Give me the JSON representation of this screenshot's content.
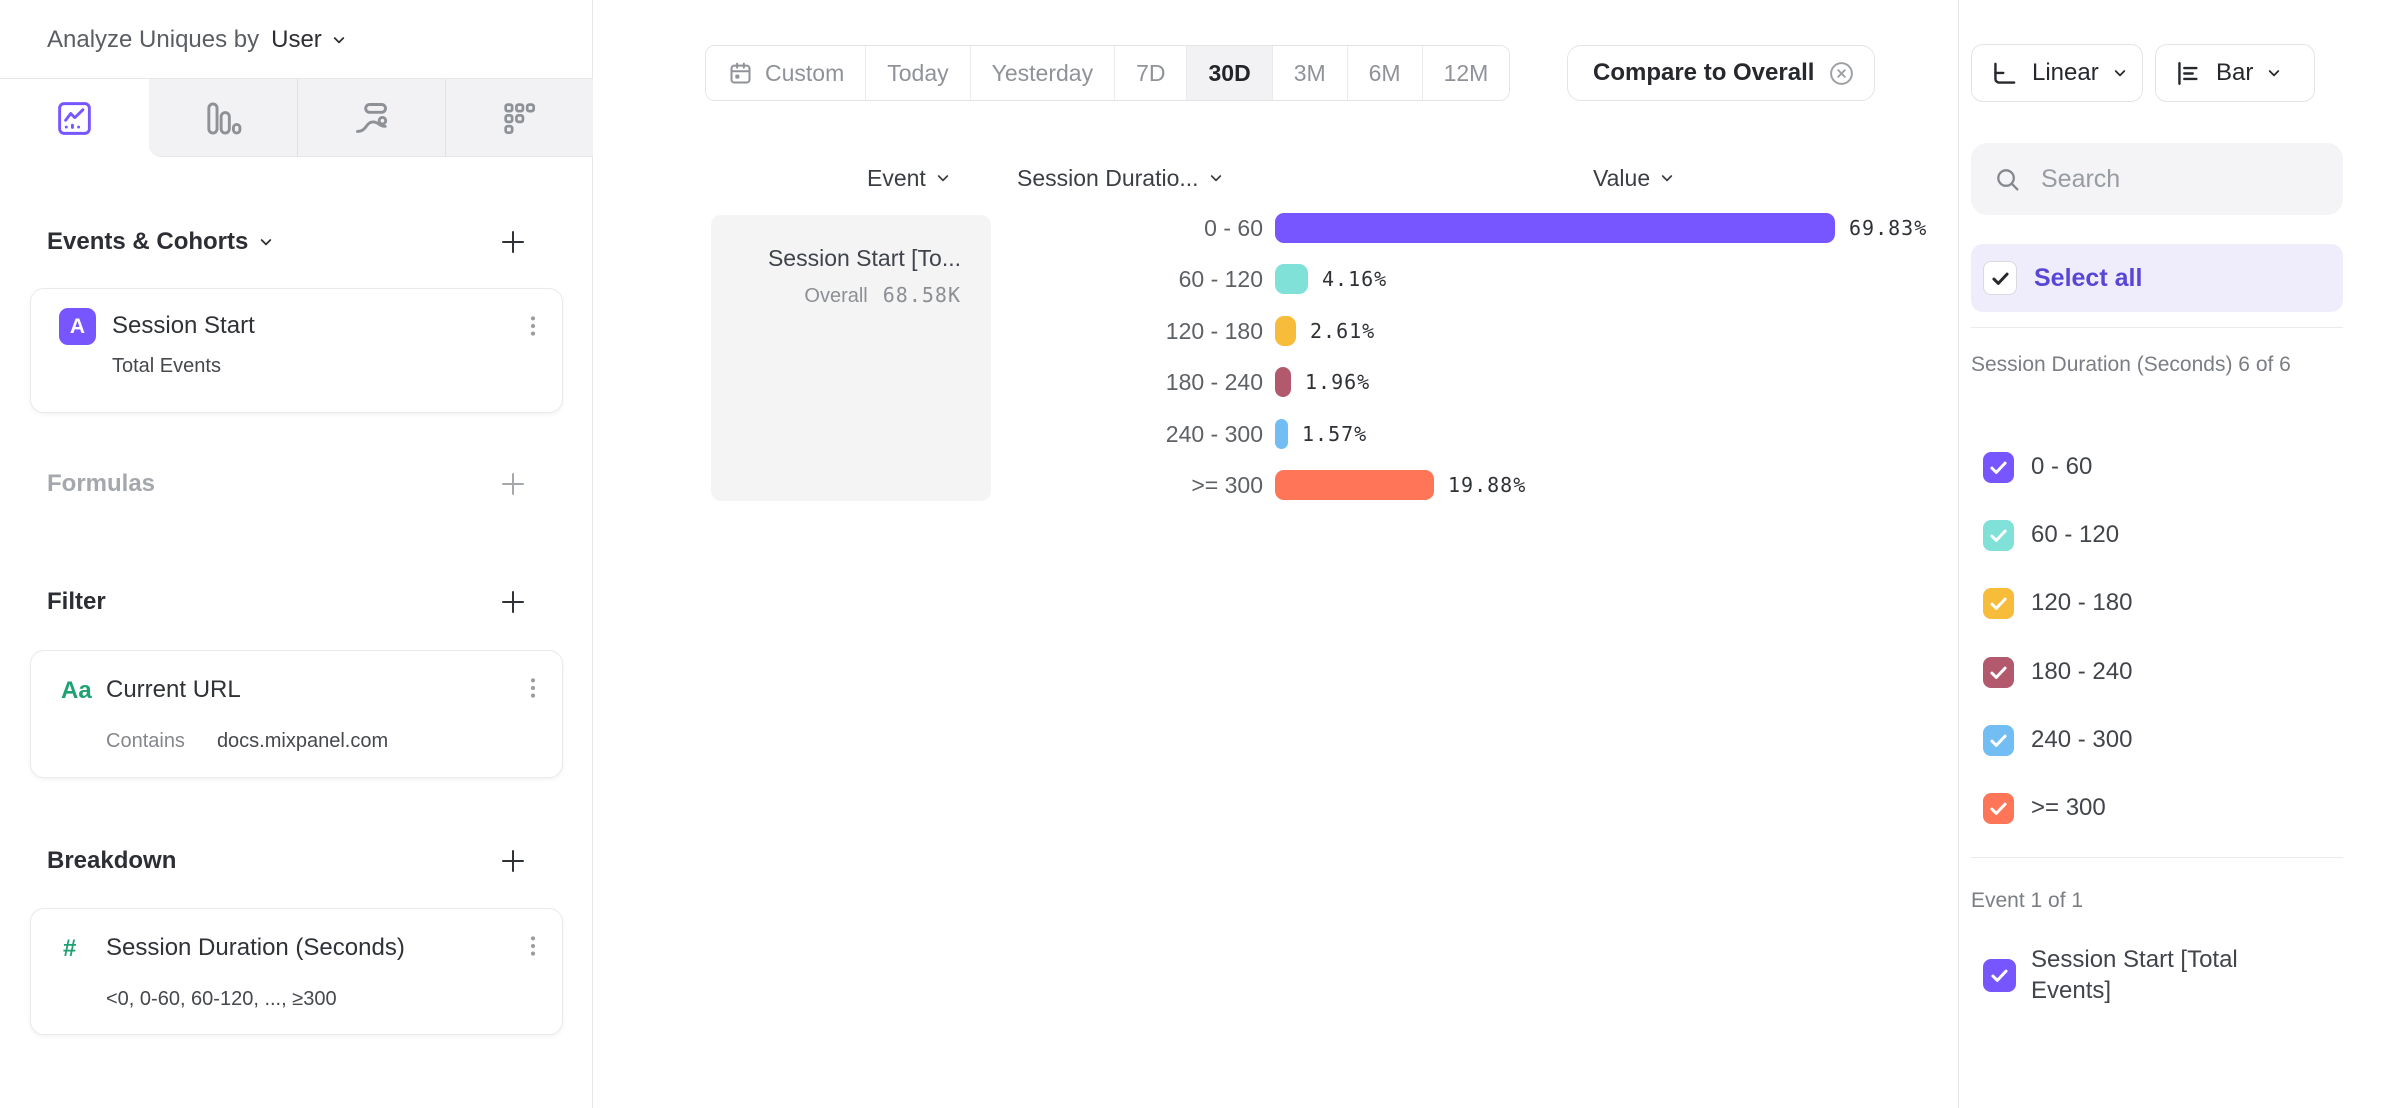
{
  "left_panel": {
    "analyze": {
      "label": "Analyze Uniques by",
      "value": "User"
    },
    "tabs": [
      {
        "name": "insights",
        "selected": true
      },
      {
        "name": "bar-report",
        "selected": false
      },
      {
        "name": "flows-report",
        "selected": false
      },
      {
        "name": "retention-report",
        "selected": false
      }
    ],
    "events_cohorts": {
      "title": "Events & Cohorts"
    },
    "event_card": {
      "badge": "A",
      "title": "Session Start",
      "subtitle": "Total Events"
    },
    "formulas": {
      "title": "Formulas"
    },
    "filter": {
      "title": "Filter"
    },
    "filter_card": {
      "icon": "Aa",
      "title": "Current URL",
      "operator": "Contains",
      "value": "docs.mixpanel.com"
    },
    "breakdown": {
      "title": "Breakdown"
    },
    "breakdown_card": {
      "icon": "#",
      "title": "Session Duration (Seconds)",
      "subtitle": "<0, 0-60, 60-120, ..., ≥300"
    }
  },
  "toolbar": {
    "ranges": [
      "Custom",
      "Today",
      "Yesterday",
      "7D",
      "30D",
      "3M",
      "6M",
      "12M"
    ],
    "selected_range": "30D",
    "compare_label": "Compare to Overall"
  },
  "view_controls": {
    "scale_label": "Linear",
    "chart_label": "Bar"
  },
  "result_table": {
    "columns": [
      "Event",
      "Session Duratio...",
      "Value"
    ],
    "event_cell": {
      "title": "Session Start [To...",
      "overall_label": "Overall",
      "overall_value": "68.58K"
    }
  },
  "chart_data": {
    "type": "bar",
    "orientation": "horizontal",
    "title": "",
    "categories": [
      "0 - 60",
      "60 - 120",
      "120 - 180",
      "180 - 240",
      "240 - 300",
      ">= 300"
    ],
    "values": [
      69.83,
      4.16,
      2.61,
      1.96,
      1.57,
      19.88
    ],
    "labels": [
      "69.83%",
      "4.16%",
      "2.61%",
      "1.96%",
      "1.57%",
      "19.88%"
    ],
    "colors": [
      "#7856FF",
      "#80E1D9",
      "#F8BC3B",
      "#B2596E",
      "#72BEF4",
      "#FF7557"
    ],
    "series_name": "Session Start [Total Events]",
    "overall_value": "68.58K",
    "unit": "%",
    "xlim": [
      0,
      100
    ]
  },
  "right_panel": {
    "search": {
      "placeholder": "Search"
    },
    "select_all_label": "Select all",
    "breakdown_group": {
      "label": "Session Duration (Seconds) 6 of 6",
      "items": [
        {
          "label": "0 - 60",
          "color": "#7856FF",
          "checked": true
        },
        {
          "label": "60 - 120",
          "color": "#80E1D9",
          "checked": true
        },
        {
          "label": "120 - 180",
          "color": "#F8BC3B",
          "checked": true
        },
        {
          "label": "180 - 240",
          "color": "#B2596E",
          "checked": true
        },
        {
          "label": "240 - 300",
          "color": "#72BEF4",
          "checked": true
        },
        {
          "label": ">= 300",
          "color": "#FF7557",
          "checked": true
        }
      ]
    },
    "event_group": {
      "label": "Event 1 of 1",
      "items": [
        {
          "label": "Session Start [Total Events]",
          "color": "#7856FF",
          "checked": true
        }
      ]
    }
  },
  "colors": {
    "accent": "#7856FF",
    "select_all_text": "#5847D6",
    "green_icon": "#1FA173"
  }
}
